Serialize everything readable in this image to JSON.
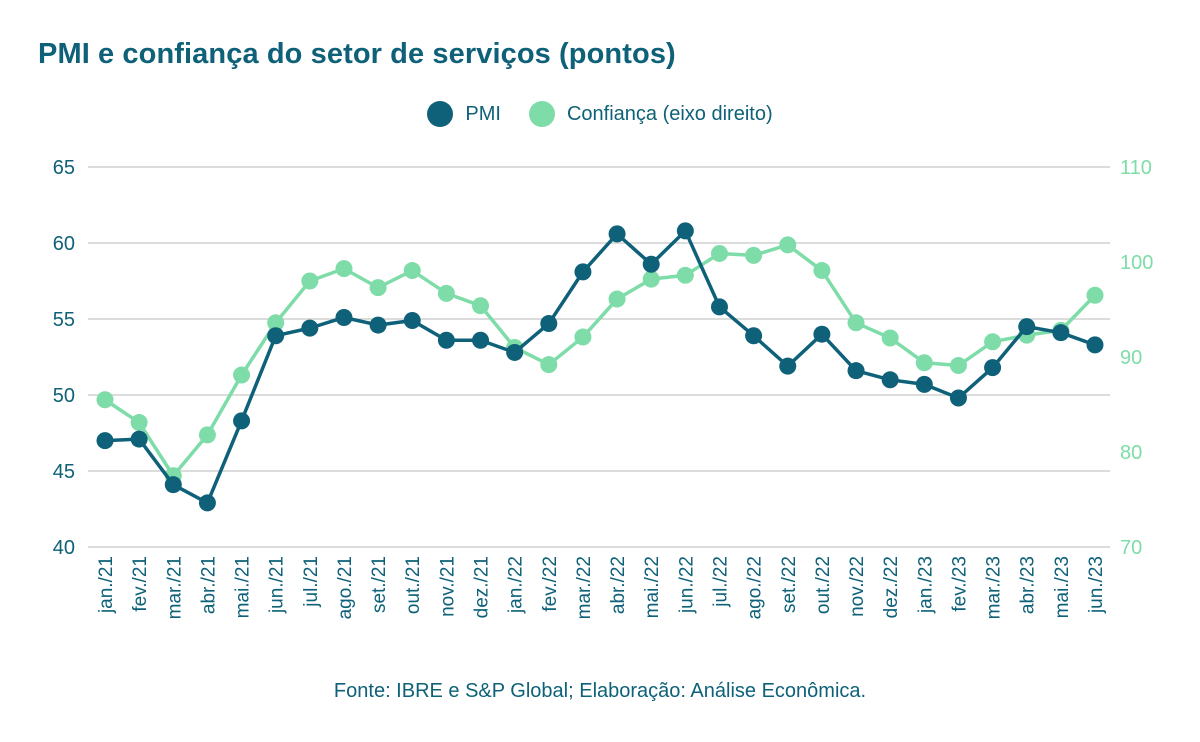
{
  "title": "PMI e confiança do setor de serviços (pontos)",
  "source": "Fonte: IBRE e S&P Global; Elaboração: Análise Econômica.",
  "colors": {
    "pmi": "#0e6178",
    "confianca": "#7edca8",
    "grid": "#c8c8c8",
    "text": "#0e6178"
  },
  "chart_data": {
    "type": "line",
    "title": "PMI e confiança do setor de serviços (pontos)",
    "categories": [
      "jan./21",
      "fev./21",
      "mar./21",
      "abr./21",
      "mai./21",
      "jun./21",
      "jul./21",
      "ago./21",
      "set./21",
      "out./21",
      "nov./21",
      "dez./21",
      "jan./22",
      "fev./22",
      "mar./22",
      "abr./22",
      "mai./22",
      "jun./22",
      "jul./22",
      "ago./22",
      "set./22",
      "out./22",
      "nov./22",
      "dez./22",
      "jan./23",
      "fev./23",
      "mar./23",
      "abr./23",
      "mai./23",
      "jun./23"
    ],
    "series": [
      {
        "name": "PMI",
        "axis": "left",
        "values": [
          47.0,
          47.1,
          44.1,
          42.9,
          48.3,
          53.9,
          54.4,
          55.1,
          54.6,
          54.9,
          53.6,
          53.6,
          52.8,
          54.7,
          58.1,
          60.6,
          58.6,
          60.8,
          55.8,
          53.9,
          51.9,
          54.0,
          51.6,
          51.0,
          50.7,
          49.8,
          51.8,
          54.5,
          54.1,
          53.3
        ]
      },
      {
        "name": "Confiança (eixo direito)",
        "axis": "right",
        "values": [
          85.5,
          83.1,
          77.5,
          81.8,
          88.1,
          93.6,
          98.0,
          99.3,
          97.3,
          99.1,
          96.7,
          95.4,
          91.0,
          89.2,
          92.1,
          96.1,
          98.2,
          98.6,
          100.9,
          100.7,
          101.8,
          99.1,
          93.6,
          92.0,
          89.4,
          89.1,
          91.6,
          92.3,
          92.8,
          96.5
        ]
      }
    ],
    "y_left": {
      "ylim": [
        40,
        65
      ],
      "ticks": [
        40,
        45,
        50,
        55,
        60,
        65
      ]
    },
    "y_right": {
      "ylim": [
        70,
        110
      ],
      "ticks": [
        70,
        80,
        90,
        100,
        110
      ]
    },
    "grid": true,
    "legend": "top-center"
  }
}
